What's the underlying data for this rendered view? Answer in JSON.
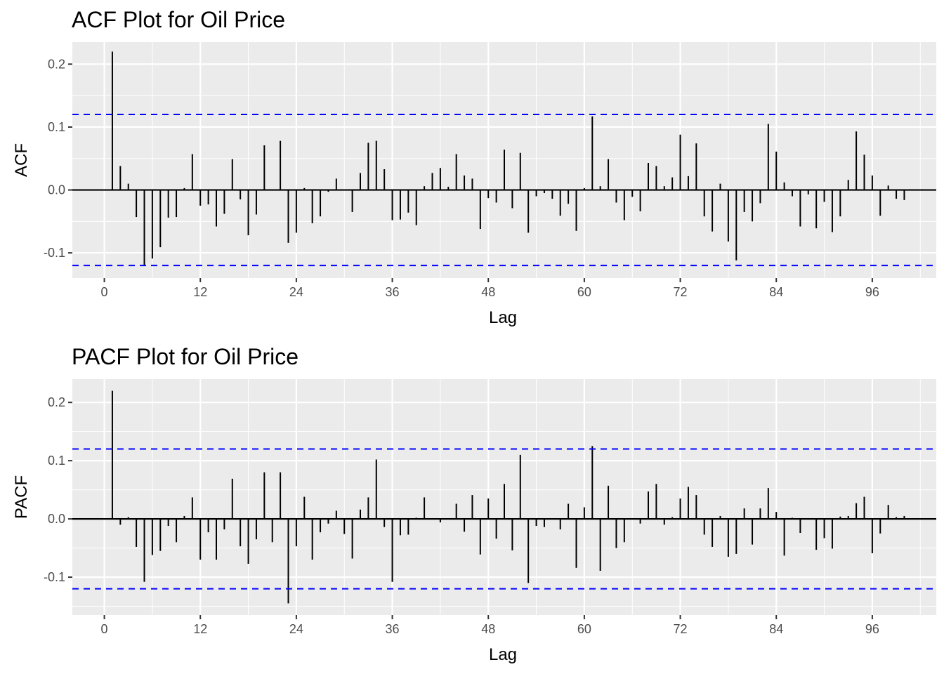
{
  "chart_data": [
    {
      "type": "bar",
      "title": "ACF Plot for Oil Price",
      "xlabel": "Lag",
      "ylabel": "ACF",
      "xticks": [
        0,
        12,
        24,
        36,
        48,
        60,
        72,
        84,
        96
      ],
      "yticks": [
        -0.1,
        0.0,
        0.1,
        0.2
      ],
      "ytick_labels": [
        "-0.1",
        "0.0",
        "0.1",
        "0.2"
      ],
      "xlim": [
        -4,
        104
      ],
      "ylim": [
        -0.14,
        0.235
      ],
      "confidence_bound": 0.12,
      "grid": true,
      "lags": [
        1,
        2,
        3,
        4,
        5,
        6,
        7,
        8,
        9,
        10,
        11,
        12,
        13,
        14,
        15,
        16,
        17,
        18,
        19,
        20,
        21,
        22,
        23,
        24,
        25,
        26,
        27,
        28,
        29,
        30,
        31,
        32,
        33,
        34,
        35,
        36,
        37,
        38,
        39,
        40,
        41,
        42,
        43,
        44,
        45,
        46,
        47,
        48,
        49,
        50,
        51,
        52,
        53,
        54,
        55,
        56,
        57,
        58,
        59,
        60,
        61,
        62,
        63,
        64,
        65,
        66,
        67,
        68,
        69,
        70,
        71,
        72,
        73,
        74,
        75,
        76,
        77,
        78,
        79,
        80,
        81,
        82,
        83,
        84,
        85,
        86,
        87,
        88,
        89,
        90,
        91,
        92,
        93,
        94,
        95,
        96,
        97,
        98,
        99,
        100
      ],
      "values": [
        0.22,
        0.038,
        0.01,
        -0.043,
        -0.12,
        -0.109,
        -0.091,
        -0.044,
        -0.043,
        0.003,
        0.057,
        -0.025,
        -0.023,
        -0.058,
        -0.038,
        0.049,
        -0.015,
        -0.072,
        -0.039,
        0.071,
        0.0,
        0.078,
        -0.084,
        -0.068,
        0.003,
        -0.053,
        -0.042,
        -0.003,
        0.018,
        0.0,
        -0.035,
        0.027,
        0.075,
        0.078,
        0.033,
        -0.048,
        -0.047,
        -0.036,
        -0.056,
        0.006,
        0.027,
        0.035,
        0.005,
        0.057,
        0.023,
        0.018,
        -0.062,
        -0.013,
        -0.02,
        0.064,
        -0.029,
        0.059,
        -0.068,
        -0.01,
        -0.005,
        -0.014,
        -0.041,
        -0.022,
        -0.065,
        0.003,
        0.117,
        0.006,
        0.049,
        -0.02,
        -0.048,
        -0.011,
        -0.034,
        0.043,
        0.038,
        0.006,
        0.02,
        0.088,
        0.022,
        0.074,
        -0.042,
        -0.066,
        0.01,
        -0.082,
        -0.112,
        -0.035,
        -0.05,
        -0.021,
        0.105,
        0.061,
        0.012,
        -0.01,
        -0.058,
        -0.007,
        -0.061,
        -0.019,
        -0.067,
        -0.042,
        0.016,
        0.093,
        0.056,
        0.023,
        -0.041,
        0.007,
        -0.014,
        -0.016
      ]
    },
    {
      "type": "bar",
      "title": "PACF Plot for Oil Price",
      "xlabel": "Lag",
      "ylabel": "PACF",
      "xticks": [
        0,
        12,
        24,
        36,
        48,
        60,
        72,
        84,
        96
      ],
      "yticks": [
        -0.1,
        0.0,
        0.1,
        0.2
      ],
      "ytick_labels": [
        "-0.1",
        "0.0",
        "0.1",
        "0.2"
      ],
      "xlim": [
        -4,
        104
      ],
      "ylim": [
        -0.165,
        0.24
      ],
      "confidence_bound": 0.12,
      "grid": true,
      "lags": [
        1,
        2,
        3,
        4,
        5,
        6,
        7,
        8,
        9,
        10,
        11,
        12,
        13,
        14,
        15,
        16,
        17,
        18,
        19,
        20,
        21,
        22,
        23,
        24,
        25,
        26,
        27,
        28,
        29,
        30,
        31,
        32,
        33,
        34,
        35,
        36,
        37,
        38,
        39,
        40,
        41,
        42,
        43,
        44,
        45,
        46,
        47,
        48,
        49,
        50,
        51,
        52,
        53,
        54,
        55,
        56,
        57,
        58,
        59,
        60,
        61,
        62,
        63,
        64,
        65,
        66,
        67,
        68,
        69,
        70,
        71,
        72,
        73,
        74,
        75,
        76,
        77,
        78,
        79,
        80,
        81,
        82,
        83,
        84,
        85,
        86,
        87,
        88,
        89,
        90,
        91,
        92,
        93,
        94,
        95,
        96,
        97,
        98,
        99,
        100
      ],
      "values": [
        0.22,
        -0.01,
        0.003,
        -0.048,
        -0.108,
        -0.062,
        -0.055,
        -0.012,
        -0.04,
        0.005,
        0.037,
        -0.07,
        -0.023,
        -0.07,
        -0.018,
        0.069,
        -0.047,
        -0.077,
        -0.035,
        0.08,
        -0.04,
        0.08,
        -0.145,
        -0.047,
        0.038,
        -0.07,
        -0.023,
        -0.008,
        0.014,
        -0.026,
        -0.068,
        0.016,
        0.037,
        0.102,
        -0.014,
        -0.108,
        -0.028,
        -0.027,
        0.002,
        0.037,
        0.001,
        -0.006,
        0.0,
        0.026,
        -0.022,
        0.041,
        -0.061,
        0.035,
        -0.034,
        0.06,
        -0.054,
        0.11,
        -0.11,
        -0.012,
        -0.014,
        0.0,
        -0.018,
        0.026,
        -0.084,
        0.02,
        0.125,
        -0.089,
        0.057,
        -0.05,
        -0.04,
        0.0,
        -0.008,
        0.047,
        0.06,
        -0.01,
        0.003,
        0.035,
        0.055,
        0.041,
        -0.027,
        -0.048,
        0.005,
        -0.065,
        -0.06,
        0.018,
        -0.044,
        0.018,
        0.053,
        0.012,
        -0.063,
        0.002,
        -0.024,
        0.001,
        -0.053,
        -0.033,
        -0.051,
        0.004,
        0.005,
        0.027,
        0.038,
        -0.059,
        -0.025,
        0.024,
        0.003,
        0.005
      ]
    }
  ]
}
